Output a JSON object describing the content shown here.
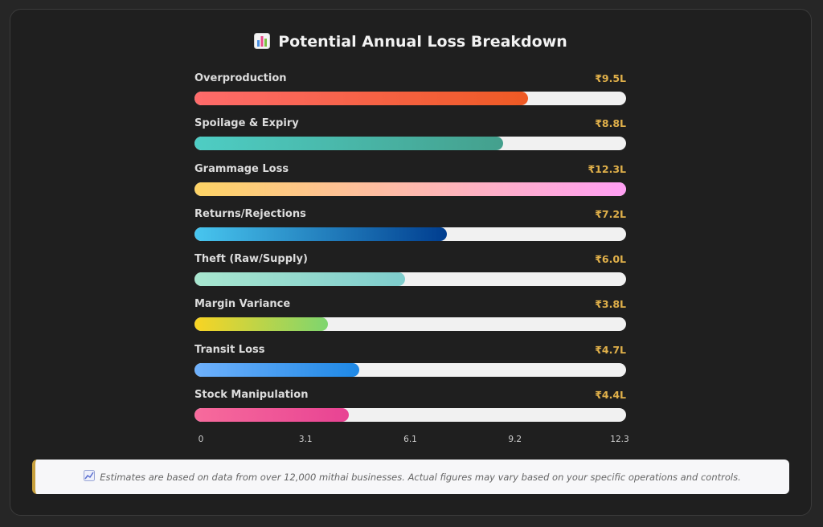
{
  "colors": {
    "background": "#1f1f1f",
    "track": "#f1f1f1",
    "value_text": "#e0b04a",
    "note_accent": "#c8a03c"
  },
  "title_icon": "bar-chart-icon",
  "note": {
    "icon": "chart-increasing-icon",
    "text": "Estimates are based on data from over 12,000 mithai businesses. Actual figures may vary based on your specific operations and controls."
  },
  "chart_data": {
    "type": "bar",
    "orientation": "horizontal",
    "title": "Potential Annual Loss Breakdown",
    "xlim": [
      0,
      12.3
    ],
    "x_ticks": [
      "0",
      "3.1",
      "6.1",
      "9.2",
      "12.3"
    ],
    "categories": [
      "Overproduction",
      "Spoilage & Expiry",
      "Grammage Loss",
      "Returns/Rejections",
      "Theft (Raw/Supply)",
      "Margin Variance",
      "Transit Loss",
      "Stock Manipulation"
    ],
    "values": [
      9.5,
      8.8,
      12.3,
      7.2,
      6.0,
      3.8,
      4.7,
      4.4
    ],
    "value_labels": [
      "₹9.5L",
      "₹8.8L",
      "₹12.3L",
      "₹7.2L",
      "₹6.0L",
      "₹3.8L",
      "₹4.7L",
      "₹4.4L"
    ],
    "bar_gradients": [
      [
        "#ff6b6b",
        "#ee5a24"
      ],
      [
        "#4ecdc4",
        "#44a08d"
      ],
      [
        "#fdd365",
        "#ff9ff3"
      ],
      [
        "#48c6ef",
        "#003d8f"
      ],
      [
        "#a8e6cf",
        "#7fcdcd"
      ],
      [
        "#f9d423",
        "#7ed56f"
      ],
      [
        "#6fb1fc",
        "#1e88e5"
      ],
      [
        "#f76b9c",
        "#e84393"
      ]
    ]
  }
}
